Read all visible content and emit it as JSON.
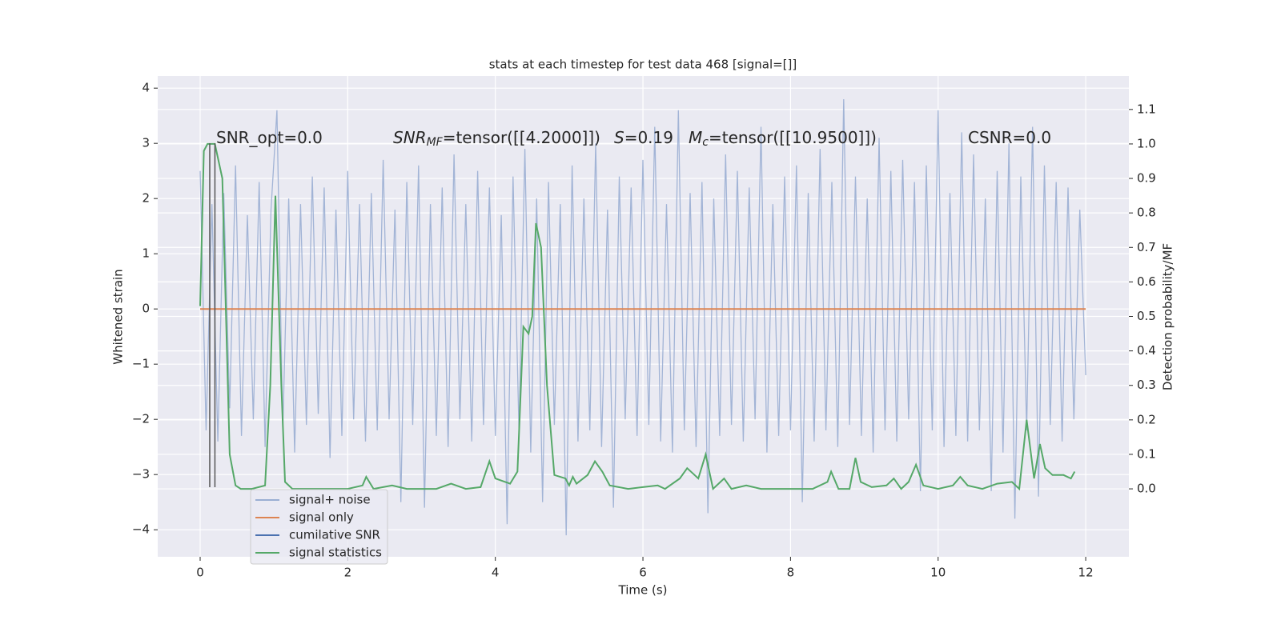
{
  "chart_data": {
    "type": "line",
    "title": "stats at each timestep for test data 468 [signal=[]]",
    "xlabel": "Time (s)",
    "ylabel": "Whitened strain",
    "y2label": "Detection probability/MF",
    "xlim": [
      -0.575,
      12.585
    ],
    "ylim": [
      -4.49,
      4.22
    ],
    "y2lim": [
      -0.197,
      1.197
    ],
    "xticks": [
      0,
      2,
      4,
      6,
      8,
      10,
      12
    ],
    "yticks": [
      {
        "value": -4,
        "label": "−4"
      },
      {
        "value": -3,
        "label": "−3"
      },
      {
        "value": -2,
        "label": "−2"
      },
      {
        "value": -1,
        "label": "−1"
      },
      0,
      1,
      2,
      3,
      4
    ],
    "y2ticks": [
      {
        "value": 0,
        "label": "0.0"
      },
      0.1,
      0.2,
      0.3,
      0.4,
      0.5,
      0.6,
      0.7,
      0.8,
      0.9,
      {
        "value": 1,
        "label": "1.0"
      },
      1.1
    ],
    "grid": true,
    "annotations": [
      [
        {
          "text": "SNR_opt=0.0"
        }
      ],
      [
        {
          "text": "SNR",
          "italic": true
        },
        {
          "text": "MF",
          "italic": true,
          "sub": true
        },
        {
          "text": "=tensor([[4.2000]])"
        }
      ],
      [
        {
          "text": "S",
          "italic": true
        },
        {
          "text": "=0.19"
        }
      ],
      [
        {
          "text": "M",
          "italic": true
        },
        {
          "text": "c",
          "italic": true,
          "sub": true
        },
        {
          "text": "=tensor([[10.9500]])"
        }
      ],
      [
        {
          "text": "CSNR=0.0"
        }
      ]
    ],
    "vlines": [
      {
        "x": 0.13,
        "ymin": -3.23,
        "ymax": 3.0,
        "color": "#555555"
      },
      {
        "x": 0.2,
        "ymin": -3.23,
        "ymax": 3.0,
        "color": "#555555"
      }
    ],
    "series": [
      {
        "name": "signal+ noise",
        "color": "#9aaed3",
        "x": [
          0,
          0.08,
          0.16,
          0.24,
          0.32,
          0.4,
          0.48,
          0.56,
          0.64,
          0.72,
          0.8,
          0.88,
          0.96,
          1.04,
          1.12,
          1.2,
          1.28,
          1.36,
          1.44,
          1.52,
          1.6,
          1.68,
          1.76,
          1.84,
          1.92,
          2,
          2.08,
          2.16,
          2.24,
          2.32,
          2.4,
          2.48,
          2.56,
          2.64,
          2.72,
          2.8,
          2.88,
          2.96,
          3.04,
          3.12,
          3.2,
          3.28,
          3.36,
          3.44,
          3.52,
          3.6,
          3.68,
          3.76,
          3.84,
          3.92,
          4,
          4.08,
          4.16,
          4.24,
          4.32,
          4.4,
          4.48,
          4.56,
          4.64,
          4.72,
          4.8,
          4.88,
          4.96,
          5.04,
          5.12,
          5.2,
          5.28,
          5.36,
          5.44,
          5.52,
          5.6,
          5.68,
          5.76,
          5.84,
          5.92,
          6,
          6.08,
          6.16,
          6.24,
          6.32,
          6.4,
          6.48,
          6.56,
          6.64,
          6.72,
          6.8,
          6.88,
          6.96,
          7.04,
          7.12,
          7.2,
          7.28,
          7.36,
          7.44,
          7.52,
          7.6,
          7.68,
          7.76,
          7.84,
          7.92,
          8,
          8.08,
          8.16,
          8.24,
          8.32,
          8.4,
          8.48,
          8.56,
          8.64,
          8.72,
          8.8,
          8.88,
          8.96,
          9.04,
          9.12,
          9.2,
          9.28,
          9.36,
          9.44,
          9.52,
          9.6,
          9.68,
          9.76,
          9.84,
          9.92,
          10,
          10.08,
          10.16,
          10.24,
          10.32,
          10.4,
          10.48,
          10.56,
          10.64,
          10.72,
          10.8,
          10.88,
          10.96,
          11.04,
          11.12,
          11.2,
          11.28,
          11.36,
          11.44,
          11.52,
          11.6,
          11.68,
          11.76,
          11.84,
          11.92,
          12
        ],
        "values": [
          2.5,
          -2.2,
          1.9,
          -2.4,
          2.1,
          -1.8,
          2.6,
          -2.3,
          1.7,
          -2.0,
          2.3,
          -2.5,
          1.8,
          3.6,
          -2.2,
          2.0,
          -2.6,
          1.9,
          -2.1,
          2.4,
          -1.9,
          2.2,
          -2.7,
          1.8,
          -2.3,
          2.5,
          -2.0,
          1.9,
          -2.4,
          2.1,
          -2.2,
          2.7,
          -2.0,
          1.8,
          -3.5,
          2.3,
          -2.1,
          2.6,
          -3.6,
          1.9,
          -2.3,
          2.2,
          -2.5,
          2.8,
          -2.0,
          1.9,
          -2.4,
          2.5,
          -2.1,
          2.2,
          -2.3,
          1.7,
          -3.9,
          2.4,
          -2.2,
          2.9,
          -2.6,
          2.0,
          -3.5,
          2.3,
          -2.1,
          1.9,
          -4.1,
          2.6,
          -2.4,
          2.0,
          -2.2,
          3.0,
          -2.5,
          1.8,
          -3.6,
          2.4,
          -2.0,
          2.2,
          -2.3,
          2.7,
          -2.1,
          3.3,
          -2.4,
          1.9,
          -2.6,
          3.6,
          -2.2,
          2.1,
          -2.5,
          2.3,
          -3.7,
          2.0,
          -2.3,
          2.8,
          -2.1,
          2.5,
          -2.4,
          2.2,
          -2.0,
          3.3,
          -2.6,
          1.9,
          -2.3,
          2.4,
          -2.2,
          2.6,
          -3.5,
          2.1,
          -2.4,
          2.9,
          -2.2,
          2.3,
          -2.5,
          3.8,
          -2.1,
          2.4,
          -2.3,
          2.0,
          -2.6,
          3.1,
          -2.2,
          2.5,
          -2.4,
          2.7,
          -2.0,
          2.3,
          -3.3,
          2.6,
          -2.2,
          3.6,
          -2.5,
          2.1,
          -2.3,
          3.2,
          -2.4,
          2.8,
          -2.2,
          2.0,
          -3.3,
          2.5,
          -2.6,
          3.0,
          -3.8,
          2.4,
          -2.2,
          3.3,
          -3.4,
          2.6,
          -2.1,
          2.3,
          -2.4,
          2.2,
          -2.0,
          1.8,
          -1.2
        ]
      },
      {
        "name": "signal only",
        "color": "#dd8452",
        "x": [
          0,
          12
        ],
        "values": [
          0,
          0
        ]
      },
      {
        "name": "cumilative SNR",
        "color": "#4c72b0",
        "x": [],
        "values": []
      },
      {
        "name": "signal statistics",
        "color": "#55a868",
        "axis": "y2",
        "x": [
          0,
          0.05,
          0.1,
          0.2,
          0.3,
          0.4,
          0.48,
          0.55,
          0.7,
          0.88,
          0.95,
          1.02,
          1.1,
          1.15,
          1.25,
          1.5,
          1.8,
          2.0,
          2.2,
          2.25,
          2.35,
          2.6,
          2.8,
          3.0,
          3.2,
          3.4,
          3.6,
          3.8,
          3.92,
          4.0,
          4.2,
          4.3,
          4.38,
          4.45,
          4.5,
          4.55,
          4.62,
          4.7,
          4.8,
          4.95,
          5.0,
          5.05,
          5.1,
          5.25,
          5.35,
          5.45,
          5.55,
          5.8,
          6.0,
          6.2,
          6.3,
          6.5,
          6.6,
          6.75,
          6.85,
          6.95,
          7.1,
          7.2,
          7.4,
          7.6,
          8.0,
          8.3,
          8.5,
          8.55,
          8.65,
          8.8,
          8.88,
          8.95,
          9.1,
          9.3,
          9.4,
          9.5,
          9.6,
          9.7,
          9.8,
          10.0,
          10.2,
          10.3,
          10.4,
          10.6,
          10.8,
          11.0,
          11.1,
          11.2,
          11.3,
          11.38,
          11.45,
          11.55,
          11.7,
          11.8,
          11.85
        ],
        "values": [
          0.53,
          0.98,
          1.0,
          1.0,
          0.9,
          0.1,
          0.01,
          0.0,
          0.0,
          0.01,
          0.3,
          0.85,
          0.3,
          0.02,
          0.0,
          0.0,
          0.0,
          0.0,
          0.01,
          0.035,
          0.0,
          0.01,
          0.0,
          0.0,
          0.0,
          0.015,
          0.0,
          0.005,
          0.08,
          0.03,
          0.015,
          0.05,
          0.47,
          0.45,
          0.5,
          0.77,
          0.7,
          0.3,
          0.04,
          0.03,
          0.01,
          0.035,
          0.015,
          0.04,
          0.08,
          0.05,
          0.01,
          0.0,
          0.005,
          0.01,
          0.0,
          0.03,
          0.06,
          0.03,
          0.1,
          0.0,
          0.03,
          0.0,
          0.01,
          0.0,
          0.0,
          0.0,
          0.02,
          0.05,
          0.0,
          0.0,
          0.09,
          0.02,
          0.005,
          0.01,
          0.03,
          0.0,
          0.02,
          0.07,
          0.01,
          0.0,
          0.01,
          0.035,
          0.01,
          0.0,
          0.015,
          0.02,
          0.0,
          0.2,
          0.03,
          0.13,
          0.06,
          0.04,
          0.04,
          0.03,
          0.05
        ]
      }
    ]
  }
}
